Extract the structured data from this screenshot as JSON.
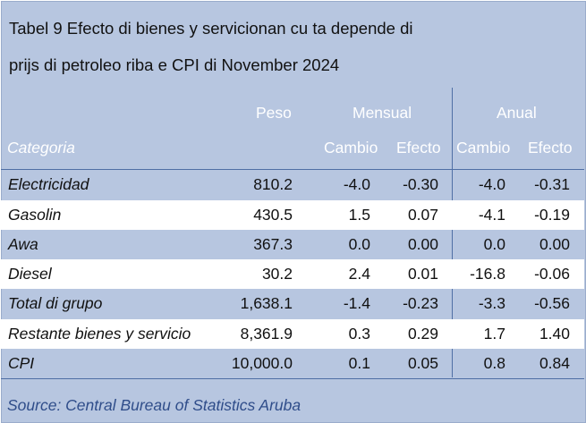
{
  "title": {
    "line1": "Tabel 9 Efecto di bienes y servicionan cu ta depende di",
    "line2": "prijs di petroleo riba e CPI di November 2024"
  },
  "header": {
    "peso": "Peso",
    "mensual": "Mensual",
    "anual": "Anual",
    "categoria": "Categoria",
    "mensual_cambio": "Cambio",
    "mensual_efecto": "Efecto",
    "anual_cambio": "Cambio",
    "anual_efecto": "Efecto"
  },
  "rows": [
    {
      "label": "Electricidad",
      "peso": "810.2",
      "m_cambio": "-4.0",
      "m_efecto": "-0.30",
      "a_cambio": "-4.0",
      "a_efecto": "-0.31"
    },
    {
      "label": "Gasolin",
      "peso": "430.5",
      "m_cambio": "1.5",
      "m_efecto": "0.07",
      "a_cambio": "-4.1",
      "a_efecto": "-0.19"
    },
    {
      "label": "Awa",
      "peso": "367.3",
      "m_cambio": "0.0",
      "m_efecto": "0.00",
      "a_cambio": "0.0",
      "a_efecto": "0.00"
    },
    {
      "label": "Diesel",
      "peso": "30.2",
      "m_cambio": "2.4",
      "m_efecto": "0.01",
      "a_cambio": "-16.8",
      "a_efecto": "-0.06"
    },
    {
      "label": "Total di grupo",
      "peso": "1,638.1",
      "m_cambio": "-1.4",
      "m_efecto": "-0.23",
      "a_cambio": "-3.3",
      "a_efecto": "-0.56"
    },
    {
      "label": "Restante bienes y servicio",
      "peso": "8,361.9",
      "m_cambio": "0.3",
      "m_efecto": "0.29",
      "a_cambio": "1.7",
      "a_efecto": "1.40"
    },
    {
      "label": "CPI",
      "peso": "10,000.0",
      "m_cambio": "0.1",
      "m_efecto": "0.05",
      "a_cambio": "0.8",
      "a_efecto": "0.84"
    }
  ],
  "source": "Source: Central Bureau of Statistics Aruba",
  "colors": {
    "panel_bg": "#b7c6e0",
    "stripe": "#ffffff",
    "rule": "#4f6fa5",
    "source_text": "#2f4d8a"
  }
}
